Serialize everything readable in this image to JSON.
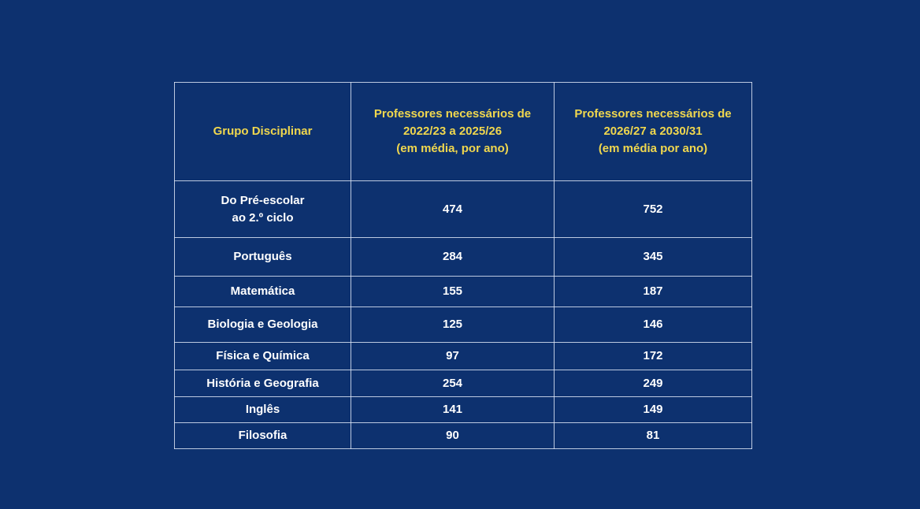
{
  "table": {
    "headers": [
      {
        "lines": [
          "Grupo Disciplinar"
        ]
      },
      {
        "lines": [
          "Professores necessários de",
          "2022/23 a 2025/26",
          "(em média, por ano)"
        ]
      },
      {
        "lines": [
          "Professores necessários de",
          "2026/27 a 2030/31",
          "(em média por ano)"
        ]
      }
    ],
    "rows": [
      {
        "group_lines": [
          "Do Pré-escolar",
          "ao 2.º ciclo"
        ],
        "v1": "474",
        "v2": "752"
      },
      {
        "group_lines": [
          "Português"
        ],
        "v1": "284",
        "v2": "345"
      },
      {
        "group_lines": [
          "Matemática"
        ],
        "v1": "155",
        "v2": "187"
      },
      {
        "group_lines": [
          "Biologia e Geologia"
        ],
        "v1": "125",
        "v2": "146"
      },
      {
        "group_lines": [
          "Física e Química"
        ],
        "v1": "97",
        "v2": "172"
      },
      {
        "group_lines": [
          "História e Geografia"
        ],
        "v1": "254",
        "v2": "249"
      },
      {
        "group_lines": [
          "Inglês"
        ],
        "v1": "141",
        "v2": "149"
      },
      {
        "group_lines": [
          "Filosofia"
        ],
        "v1": "90",
        "v2": "81"
      }
    ]
  },
  "colors": {
    "background": "#0d316f",
    "header_text": "#f0d74e",
    "body_text": "#ffffff",
    "grid": "#dce4f5"
  }
}
